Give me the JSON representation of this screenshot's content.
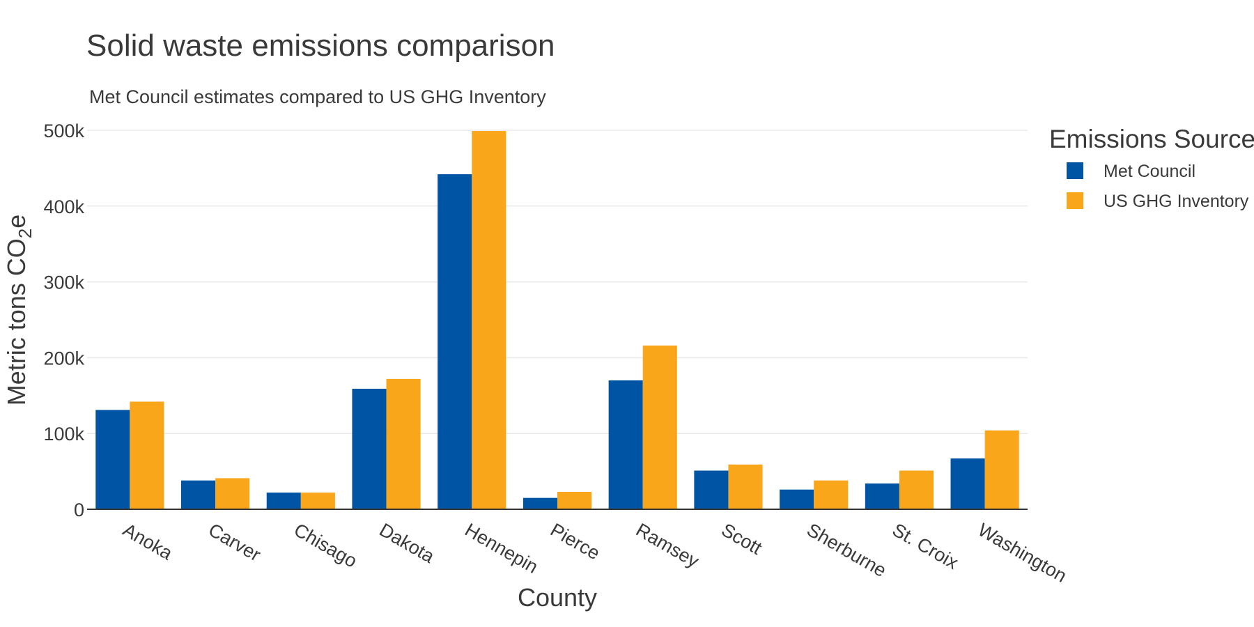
{
  "chart_data": {
    "type": "bar",
    "title": "Solid waste emissions comparison",
    "subtitle": "Met Council estimates compared to US GHG Inventory",
    "xlabel": "County",
    "ylabel_main": "Metric tons CO",
    "ylabel_sub": "2",
    "ylabel_tail": "e",
    "ylim": [
      0,
      500000
    ],
    "yticks": [
      0,
      100000,
      200000,
      300000,
      400000,
      500000
    ],
    "ytick_labels": [
      "0",
      "100k",
      "200k",
      "300k",
      "400k",
      "500k"
    ],
    "grid": true,
    "legend": {
      "title": "Emissions Source",
      "position": "right"
    },
    "categories": [
      "Anoka",
      "Carver",
      "Chisago",
      "Dakota",
      "Hennepin",
      "Pierce",
      "Ramsey",
      "Scott",
      "Sherburne",
      "St. Croix",
      "Washington"
    ],
    "series": [
      {
        "name": "Met Council",
        "color": "#0054a4",
        "values": [
          131000,
          38000,
          22000,
          159000,
          442000,
          15000,
          170000,
          51000,
          26000,
          34000,
          67000
        ]
      },
      {
        "name": "US GHG Inventory",
        "color": "#f9a61b",
        "values": [
          142000,
          41000,
          22000,
          172000,
          499000,
          23000,
          216000,
          59000,
          38000,
          51000,
          104000
        ]
      }
    ]
  }
}
